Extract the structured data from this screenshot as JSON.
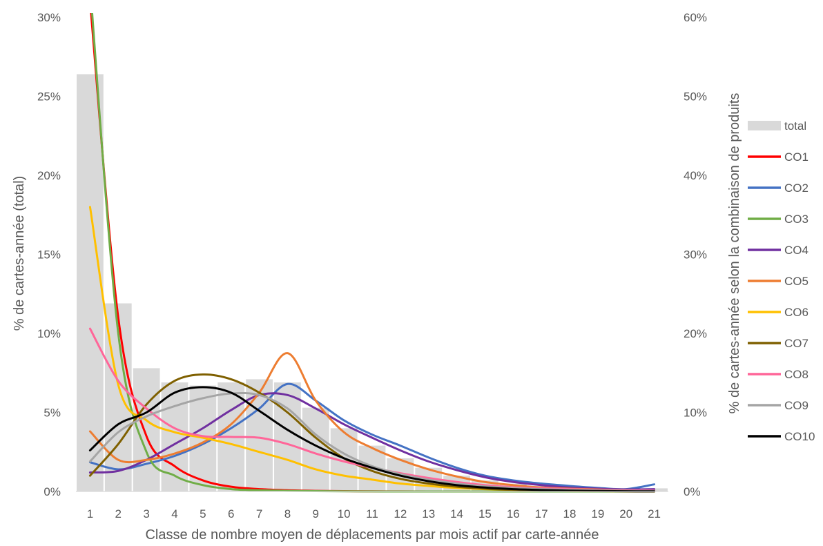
{
  "chart_data": {
    "type": "bar+line",
    "title": "",
    "xlabel": "Classe de nombre moyen de déplacements par mois actif par carte-année",
    "ylabel_left": "% de cartes-année (total)",
    "ylabel_right": "% de cartes-année selon la combinaison de produits",
    "ylim_left": [
      0,
      30
    ],
    "ylim_right": [
      0,
      60
    ],
    "yticks_left": [
      "0%",
      "5%",
      "10%",
      "15%",
      "20%",
      "25%",
      "30%"
    ],
    "yticks_right": [
      "0%",
      "10%",
      "20%",
      "30%",
      "40%",
      "50%",
      "60%"
    ],
    "categories": [
      "1",
      "2",
      "3",
      "4",
      "5",
      "6",
      "7",
      "8",
      "9",
      "10",
      "11",
      "12",
      "13",
      "14",
      "15",
      "16",
      "17",
      "18",
      "19",
      "20",
      "21"
    ],
    "grid": false,
    "legend_position": "right",
    "bars": {
      "name": "total",
      "axis": "left",
      "color": "#d9d9d9",
      "values": [
        26.4,
        11.9,
        7.8,
        6.9,
        6.7,
        6.9,
        7.1,
        6.9,
        5.3,
        4.0,
        2.9,
        2.1,
        1.5,
        1.0,
        0.7,
        0.5,
        0.35,
        0.25,
        0.2,
        0.1,
        0.2
      ]
    },
    "series": [
      {
        "name": "CO1",
        "axis": "right",
        "color": "#ff0000",
        "values": [
          62.0,
          22.0,
          7.0,
          3.2,
          1.4,
          0.6,
          0.3,
          0.15,
          0.08,
          0.04,
          0.02,
          0.01,
          0,
          0,
          0,
          0,
          0,
          0,
          0,
          0,
          0
        ]
      },
      {
        "name": "CO2",
        "axis": "right",
        "color": "#4472c4",
        "values": [
          3.7,
          2.8,
          3.5,
          4.5,
          6.0,
          8.0,
          10.5,
          13.6,
          11.5,
          9.0,
          7.2,
          5.8,
          4.3,
          3.0,
          2.0,
          1.4,
          1.0,
          0.7,
          0.45,
          0.3,
          0.9
        ]
      },
      {
        "name": "CO3",
        "axis": "right",
        "color": "#70ad47",
        "values": [
          64.0,
          20.0,
          5.0,
          2.0,
          0.8,
          0.3,
          0.15,
          0.08,
          0.04,
          0.02,
          0.01,
          0,
          0,
          0,
          0,
          0,
          0,
          0,
          0,
          0,
          0
        ]
      },
      {
        "name": "CO4",
        "axis": "right",
        "color": "#7030a0",
        "values": [
          2.4,
          2.6,
          4.0,
          6.0,
          8.0,
          10.3,
          12.2,
          12.2,
          10.5,
          8.5,
          6.8,
          5.2,
          3.8,
          2.7,
          1.8,
          1.2,
          0.8,
          0.5,
          0.35,
          0.25,
          0.3
        ]
      },
      {
        "name": "CO5",
        "axis": "right",
        "color": "#ed7d31",
        "values": [
          7.6,
          4.0,
          4.0,
          4.8,
          6.2,
          8.5,
          12.5,
          17.5,
          11.5,
          7.5,
          5.5,
          4.0,
          2.8,
          1.9,
          1.2,
          0.8,
          0.5,
          0.35,
          0.25,
          0.15,
          0.1
        ]
      },
      {
        "name": "CO6",
        "axis": "right",
        "color": "#ffc000",
        "values": [
          36.0,
          13.5,
          9.0,
          7.5,
          6.8,
          6.0,
          5.0,
          4.0,
          2.8,
          2.0,
          1.5,
          1.0,
          0.7,
          0.45,
          0.3,
          0.2,
          0.12,
          0.08,
          0.05,
          0.03,
          0.02
        ]
      },
      {
        "name": "CO7",
        "axis": "right",
        "color": "#7f6000",
        "values": [
          2.0,
          6.0,
          11.0,
          14.0,
          14.8,
          14.2,
          12.5,
          10.0,
          6.8,
          4.2,
          2.6,
          1.6,
          1.0,
          0.6,
          0.35,
          0.2,
          0.12,
          0.07,
          0.04,
          0.02,
          0.01
        ]
      },
      {
        "name": "CO8",
        "axis": "right",
        "color": "#ff6699",
        "values": [
          20.6,
          14.0,
          10.5,
          8.0,
          7.0,
          6.9,
          6.8,
          6.0,
          4.8,
          3.8,
          3.0,
          2.3,
          1.7,
          1.2,
          0.8,
          0.55,
          0.4,
          0.3,
          0.2,
          0.15,
          0.1
        ]
      },
      {
        "name": "CO9",
        "axis": "right",
        "color": "#a5a5a5",
        "values": [
          3.8,
          7.5,
          9.5,
          10.8,
          11.8,
          12.4,
          12.2,
          10.5,
          7.2,
          4.8,
          3.2,
          2.2,
          1.5,
          1.0,
          0.65,
          0.45,
          0.3,
          0.2,
          0.12,
          0.08,
          0.05
        ]
      },
      {
        "name": "CO10",
        "axis": "right",
        "color": "#000000",
        "values": [
          5.2,
          8.5,
          10.0,
          12.5,
          13.2,
          12.5,
          10.2,
          7.8,
          5.8,
          4.2,
          3.0,
          2.0,
          1.3,
          0.8,
          0.5,
          0.3,
          0.18,
          0.1,
          0.06,
          0.03,
          0.02
        ]
      }
    ]
  }
}
